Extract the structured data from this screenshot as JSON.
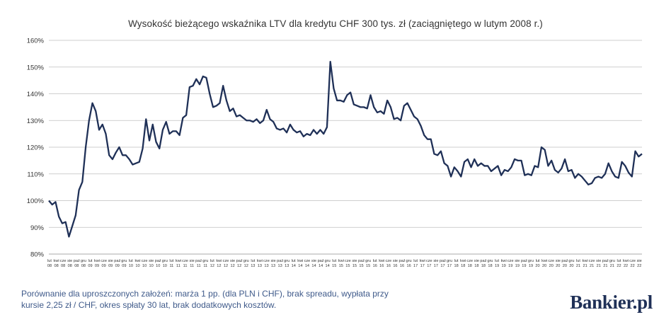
{
  "chart_data": {
    "type": "line",
    "title": "Wysokość bieżącego wskaźnika LTV dla kredytu CHF 300 tys. zł (zaciągniętego w lutym 2008 r.)",
    "xlabel": "",
    "ylabel": "",
    "ylim": [
      80,
      160
    ],
    "y_ticks": [
      "80%",
      "90%",
      "100%",
      "110%",
      "120%",
      "130%",
      "140%",
      "150%",
      "160%"
    ],
    "grid": true,
    "legend": "none",
    "x_tick_months": [
      "lut",
      "kwi",
      "cze",
      "sie",
      "paź",
      "gru"
    ],
    "x_tick_years": [
      "08",
      "08",
      "08",
      "08",
      "08",
      "08",
      "09",
      "09",
      "09",
      "09",
      "09",
      "09",
      "10",
      "10",
      "10",
      "10",
      "10",
      "10",
      "11",
      "11",
      "11",
      "11",
      "11",
      "11",
      "12",
      "12",
      "12",
      "12",
      "12",
      "12",
      "13",
      "13",
      "13",
      "13",
      "13",
      "13",
      "14",
      "14",
      "14",
      "14",
      "14",
      "14",
      "15",
      "15",
      "15",
      "15",
      "15",
      "15",
      "16",
      "16",
      "16",
      "16",
      "16",
      "16",
      "17",
      "17",
      "17",
      "17",
      "17",
      "17",
      "18",
      "18",
      "18",
      "18",
      "18",
      "18",
      "19",
      "19",
      "19",
      "19",
      "19",
      "19",
      "20",
      "20",
      "20",
      "20",
      "20",
      "20",
      "21",
      "21",
      "21",
      "21",
      "21",
      "21",
      "22",
      "22",
      "22",
      "22"
    ],
    "series": [
      {
        "values": [
          100,
          98.5,
          99.5,
          94,
          91.5,
          92,
          86.5,
          90.5,
          94.5,
          104,
          107,
          120,
          130,
          136.5,
          133.5,
          126.5,
          128.5,
          125,
          117,
          115.5,
          118,
          120,
          117,
          117,
          115.5,
          113.5,
          114,
          114.5,
          119.5,
          130.5,
          122.5,
          128.5,
          122,
          119.5,
          126.5,
          129.5,
          125,
          126,
          126,
          124.5,
          131,
          132,
          142.5,
          143,
          145.5,
          143.5,
          146.5,
          146,
          140,
          135,
          135.5,
          136.5,
          143,
          137.5,
          133.5,
          134.5,
          131.5,
          132,
          131,
          130,
          130,
          129.5,
          130.5,
          129,
          130,
          134,
          130.5,
          129.5,
          127,
          126.5,
          127,
          125.5,
          128.5,
          126.5,
          125.5,
          126,
          124,
          125,
          124.5,
          126.5,
          125,
          126.5,
          125,
          127.5,
          152,
          142,
          137.5,
          137.5,
          137,
          139.5,
          140.5,
          136,
          135.5,
          135,
          135,
          134.5,
          139.5,
          135,
          133,
          133.5,
          132.5,
          137.5,
          135,
          130.5,
          131,
          130,
          135.5,
          136.5,
          134,
          131.5,
          130.5,
          128,
          124.5,
          123,
          123,
          117.5,
          117,
          118.5,
          114,
          113,
          109,
          112.5,
          111,
          109,
          114.5,
          115.5,
          112.5,
          115.5,
          113,
          114,
          113,
          113,
          111,
          112,
          113,
          109.5,
          111.5,
          111,
          112.5,
          115.5,
          115,
          115,
          109.5,
          110,
          109.5,
          113,
          112.5,
          120,
          119,
          113,
          115,
          111.5,
          110.5,
          112,
          115.5,
          111,
          111.5,
          108.5,
          110,
          109,
          107.5,
          106,
          106.5,
          108.5,
          109,
          108.5,
          110,
          114,
          111,
          109,
          108.5,
          114.5,
          113,
          110.5,
          109,
          118.5,
          116.5,
          117.5
        ]
      }
    ]
  },
  "footnote": {
    "line1": "Porównanie dla uproszczonych założeń: marża 1 pp. (dla PLN i CHF), brak spreadu, wypłata przy",
    "line2": "kursie 2,25 zł / CHF, okres spłaty 30 lat, brak dodatkowych kosztów."
  },
  "brand": "Bankier.pl",
  "colors": {
    "line": "#1f3057",
    "grid": "#bfbfbf",
    "footnote": "#3f5a8a"
  }
}
